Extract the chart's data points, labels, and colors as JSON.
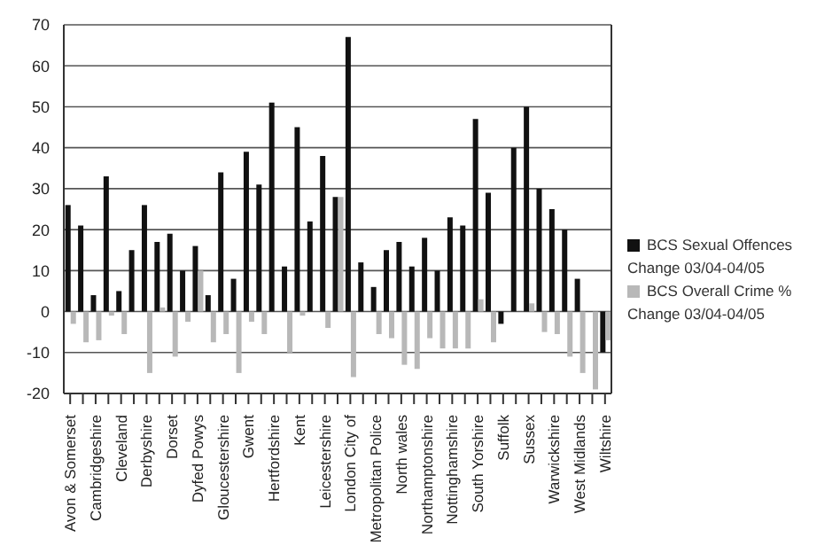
{
  "chart_data": {
    "type": "bar",
    "categories": [
      "Avon & Somerset",
      null,
      "Cambridgeshire",
      null,
      "Cleveland",
      null,
      "Derbyshire",
      null,
      "Dorset",
      null,
      "Dyfed Powys",
      null,
      "Gloucestershire",
      null,
      "Gwent",
      null,
      "Hertfordshire",
      null,
      "Kent",
      null,
      "Leicestershire",
      null,
      "London City of",
      null,
      "Metropolitan Police",
      null,
      "North wales",
      null,
      "Northamptonshire",
      null,
      "Nottinghamshire",
      null,
      "South Yorshire",
      null,
      "Suffolk",
      null,
      "Sussex",
      null,
      "Warwickshire",
      null,
      "West Midlands",
      null,
      "Wiltshire"
    ],
    "series": [
      {
        "name": "BCS Sexual Offences Change 03/04-04/05",
        "color": "#111111",
        "values": [
          26,
          21,
          4,
          33,
          5,
          15,
          26,
          17,
          19,
          10,
          16,
          4,
          34,
          8,
          39,
          31,
          51,
          11,
          45,
          22,
          38,
          28,
          67,
          12,
          6,
          15,
          17,
          11,
          18,
          10,
          23,
          21,
          47,
          29,
          -3,
          40,
          50,
          30,
          25,
          20,
          8,
          0,
          -10
        ]
      },
      {
        "name": "BCS Overall Crime % Change 03/04-04/05",
        "color": "#b8b8b8",
        "values": [
          -3,
          -7.5,
          -7,
          -1,
          -5.5,
          0,
          -15,
          1,
          -11,
          -2.5,
          10,
          -7.5,
          -5.5,
          -15,
          -2.5,
          -5.5,
          0,
          -10,
          -1,
          0,
          -4,
          28,
          -16,
          0,
          -5.5,
          -6.5,
          -13,
          -14,
          -6.5,
          -9,
          -9,
          -9,
          3,
          -7.5,
          0,
          0,
          2,
          -5,
          -5.5,
          -11,
          -15,
          -19,
          -7
        ]
      }
    ],
    "ylim": [
      -20,
      70
    ],
    "yticks": [
      -20,
      -10,
      0,
      10,
      20,
      30,
      40,
      50,
      60,
      70
    ],
    "grid": "y",
    "legend": "right"
  }
}
